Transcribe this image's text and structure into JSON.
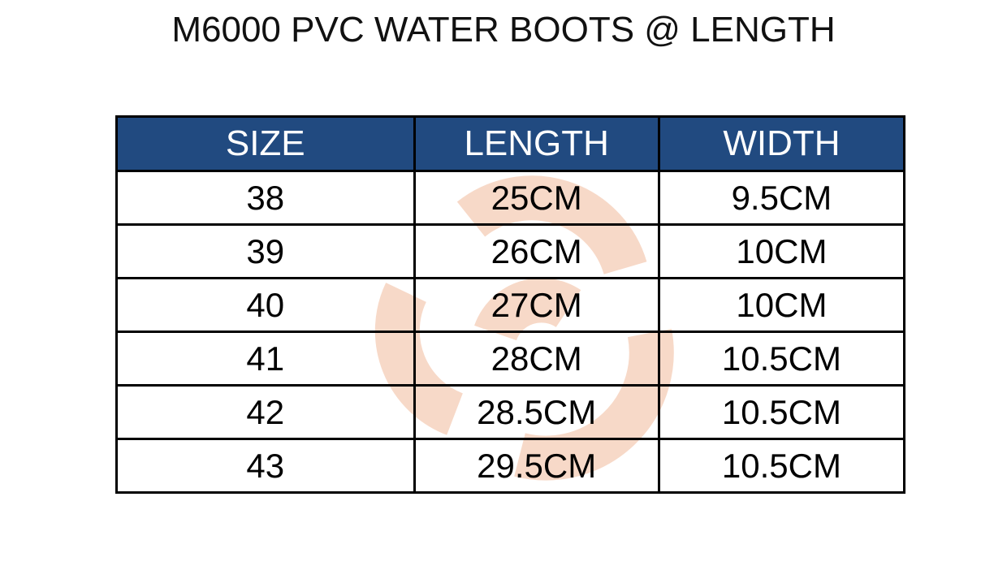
{
  "title": "M6000 PVC WATER BOOTS @ LENGTH",
  "table": {
    "header": [
      "SIZE",
      "LENGTH",
      "WIDTH"
    ],
    "rows": [
      [
        "38",
        "25CM",
        "9.5CM"
      ],
      [
        "39",
        "26CM",
        "10CM"
      ],
      [
        "40",
        "27CM",
        "10CM"
      ],
      [
        "41",
        "28CM",
        "10.5CM"
      ],
      [
        "42",
        "28.5CM",
        "10.5CM"
      ],
      [
        "43",
        "29.5CM",
        "10.5CM"
      ]
    ]
  }
}
